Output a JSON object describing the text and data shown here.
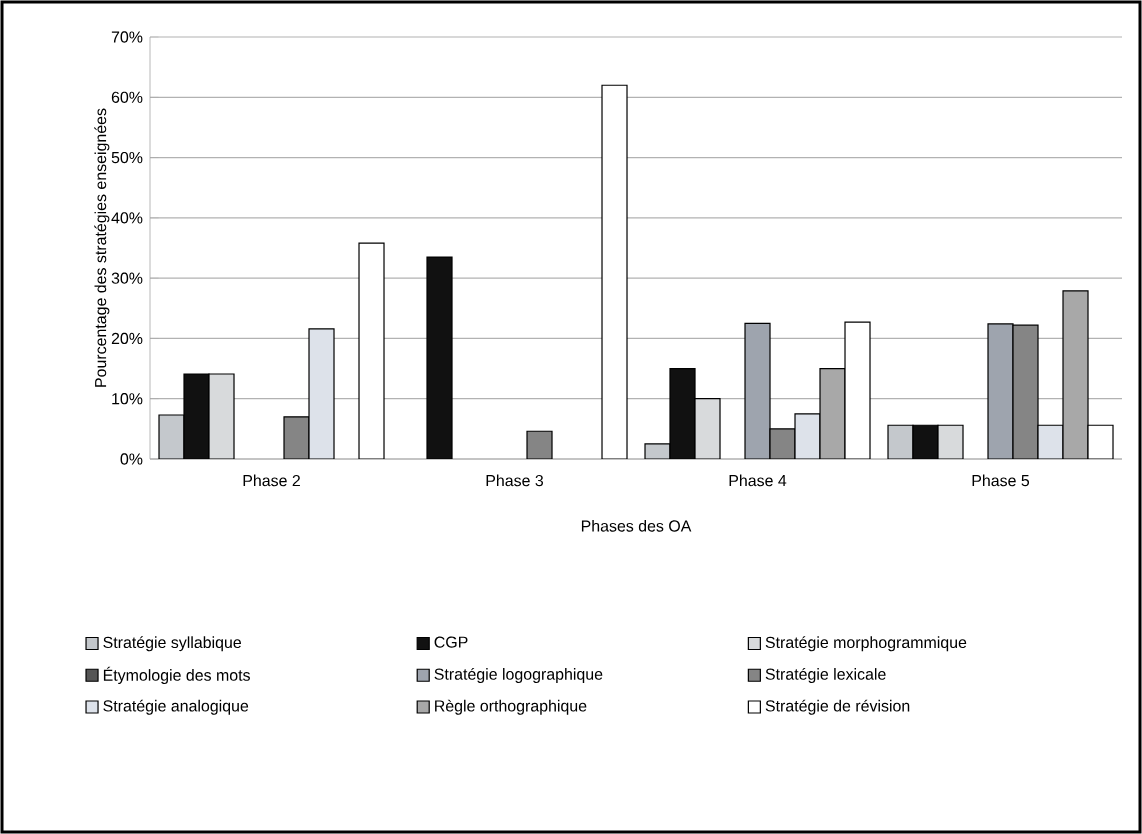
{
  "chart_data": {
    "type": "bar",
    "xlabel": "Phases des OA",
    "ylabel": "Pourcentage des stratégies enseignées",
    "categories": [
      "Phase 2",
      "Phase 3",
      "Phase 4",
      "Phase 5"
    ],
    "series": [
      {
        "name": "Stratégie syllabique",
        "color": "#c4c8cc",
        "values": [
          7.3,
          0,
          2.5,
          5.6
        ]
      },
      {
        "name": "CGP",
        "color": "#111111",
        "values": [
          14.1,
          33.5,
          15,
          5.6
        ]
      },
      {
        "name": "Stratégie morphogrammique",
        "color": "#d8dadc",
        "values": [
          14.1,
          0,
          10,
          5.6
        ]
      },
      {
        "name": "Étymologie des mots",
        "color": "#555555",
        "values": [
          0,
          0,
          0,
          0
        ]
      },
      {
        "name": "Stratégie logographique",
        "color": "#9ea4ae",
        "values": [
          0,
          0,
          22.5,
          22.4
        ]
      },
      {
        "name": "Stratégie lexicale",
        "color": "#858585",
        "values": [
          7,
          4.6,
          5,
          22.2
        ]
      },
      {
        "name": "Stratégie analogique",
        "color": "#dde2ea",
        "values": [
          21.6,
          0,
          7.5,
          5.6
        ]
      },
      {
        "name": "Règle orthographique",
        "color": "#a8a8a8",
        "values": [
          0,
          0,
          15,
          27.9
        ]
      },
      {
        "name": "Stratégie de révision",
        "color": "#ffffff",
        "values": [
          35.8,
          62,
          22.7,
          5.6
        ]
      }
    ],
    "ylim": [
      0,
      70
    ],
    "yticks": [
      {
        "value": 0,
        "label": "0%"
      },
      {
        "value": 10,
        "label": "10%"
      },
      {
        "value": 20,
        "label": "20%"
      },
      {
        "value": 30,
        "label": "30%"
      },
      {
        "value": 40,
        "label": "40%"
      },
      {
        "value": 50,
        "label": "50%"
      },
      {
        "value": 60,
        "label": "60%"
      },
      {
        "value": 70,
        "label": "70%"
      }
    ],
    "grid": "y",
    "legend": "bottom"
  }
}
